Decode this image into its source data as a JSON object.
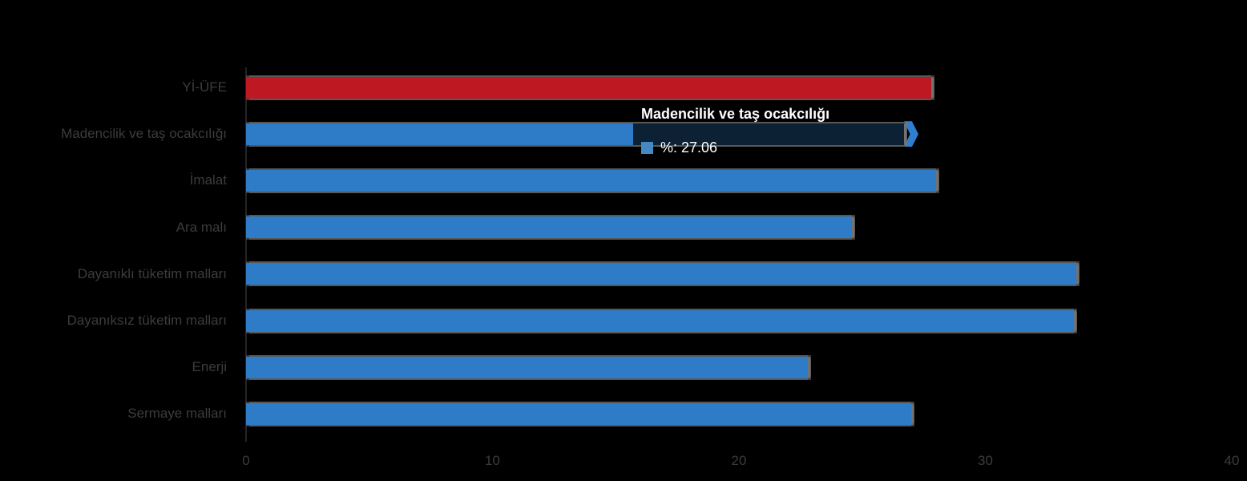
{
  "chart_data": {
    "type": "bar",
    "orientation": "horizontal",
    "title": "",
    "xlabel": "",
    "ylabel": "",
    "categories": [
      "Yİ-ÜFE",
      "Madencilik ve taş ocakcılığı",
      "İmalat",
      "Ara malı",
      "Dayanıklı tüketim malları",
      "Dayanıksız tüketim malları",
      "Enerji",
      "Sermaye malları"
    ],
    "series": [
      {
        "name": "%",
        "values": [
          27.8,
          27.06,
          28.0,
          24.6,
          33.7,
          33.6,
          22.8,
          27.0
        ]
      }
    ],
    "xlim": [
      0,
      40
    ],
    "xticks": [
      "0",
      "10",
      "20",
      "30",
      "40"
    ],
    "grid": false,
    "legend_position": "none",
    "colors": {
      "total_bar": "#be1823",
      "sector_bar": "#2e7cc7",
      "hover_dim_bar": "#0c2134",
      "hover_arrow": "#2f7ed2",
      "label_text": "#3c3c3c",
      "background": "#000000"
    },
    "hovered_category": "Madencilik ve taş ocakcılığı",
    "hovered_index": 1
  },
  "tooltip": {
    "title": "Madencilik ve taş ocakcılığı",
    "label": "%",
    "value": "27.06",
    "body": "%: 27.06",
    "swatch_color": "#4488c4",
    "text_color": "#ffffff"
  }
}
